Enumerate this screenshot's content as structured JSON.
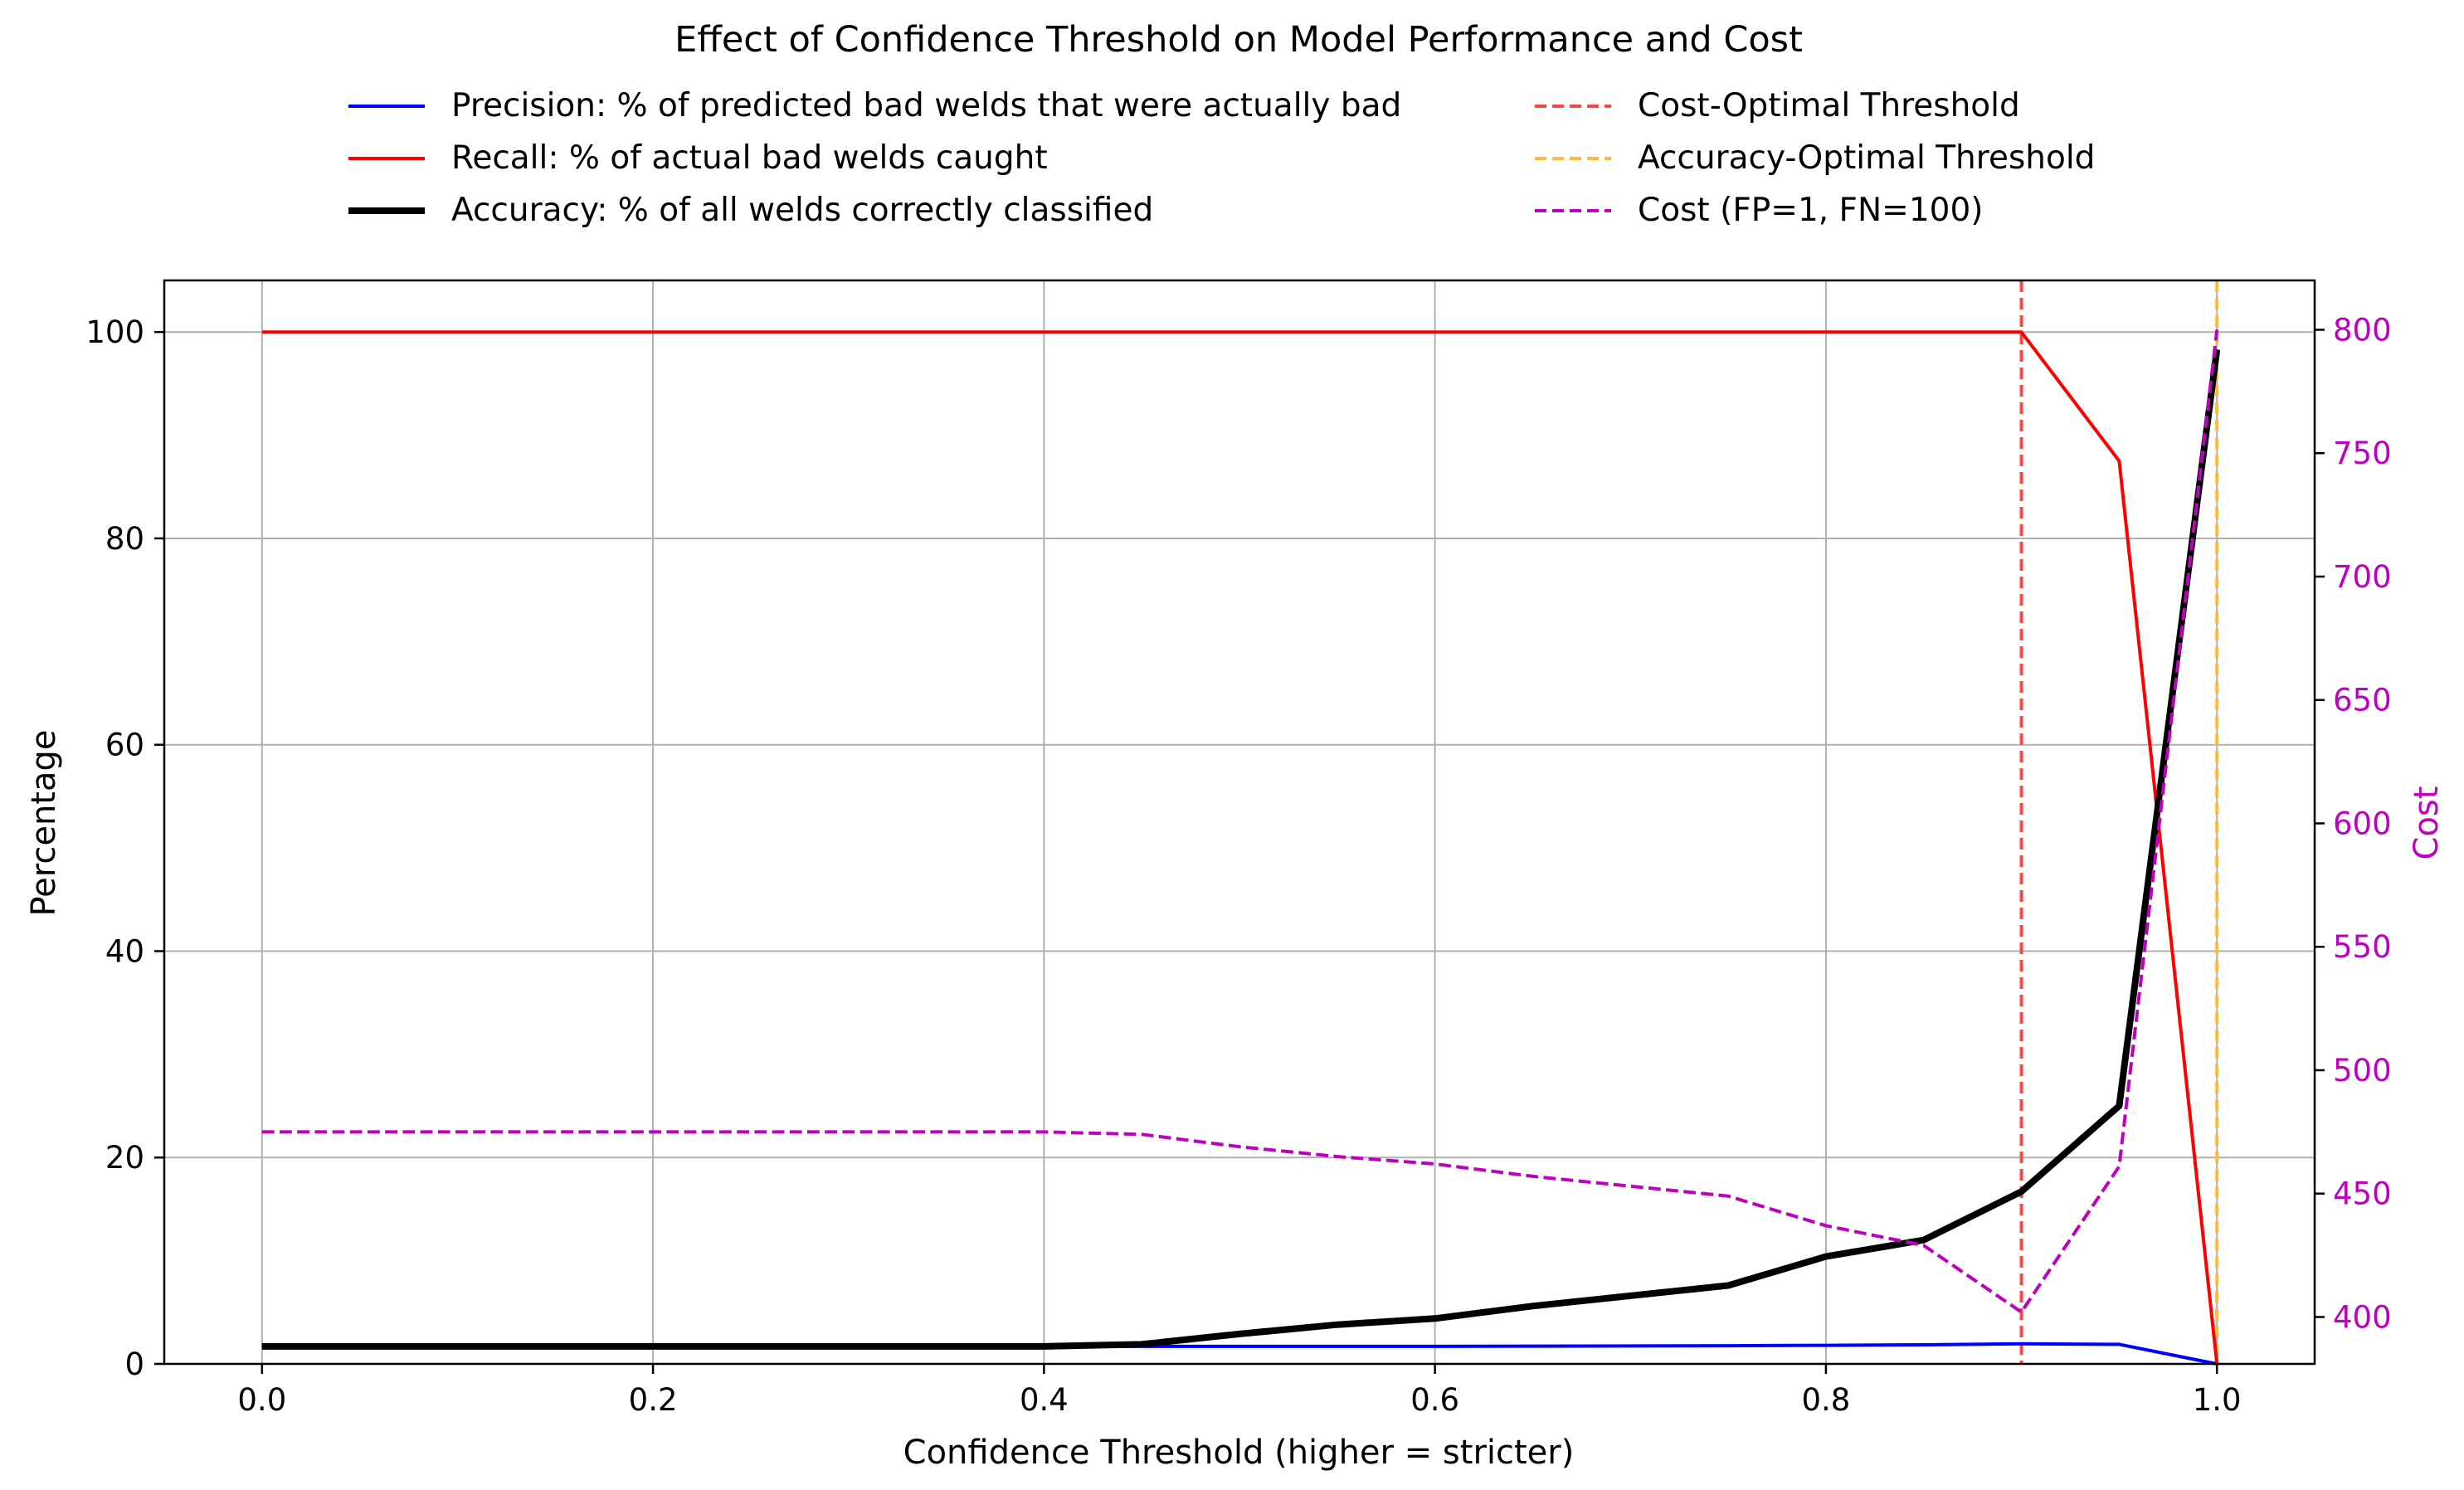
{
  "chart_data": {
    "type": "line",
    "title": "Effect of Confidence Threshold on Model Performance and Cost",
    "xlabel": "Confidence Threshold (higher = stricter)",
    "ylabel": "Percentage",
    "y2label": "Cost",
    "xlim": [
      -0.05,
      1.05
    ],
    "ylim": [
      0,
      105
    ],
    "y2lim": [
      381,
      820
    ],
    "xticks": [
      0.0,
      0.2,
      0.4,
      0.6,
      0.8,
      1.0
    ],
    "xtick_labels": [
      "0.0",
      "0.2",
      "0.4",
      "0.6",
      "0.8",
      "1.0"
    ],
    "yticks": [
      0,
      20,
      40,
      60,
      80,
      100
    ],
    "ytick_labels": [
      "0",
      "20",
      "40",
      "60",
      "80",
      "100"
    ],
    "y2ticks": [
      400,
      450,
      500,
      550,
      600,
      650,
      700,
      750,
      800
    ],
    "y2tick_labels": [
      "400",
      "450",
      "500",
      "550",
      "600",
      "650",
      "700",
      "750",
      "800"
    ],
    "grid": true,
    "legend_position": "top-center",
    "x": [
      0.0,
      0.05,
      0.1,
      0.15,
      0.2,
      0.25,
      0.3,
      0.35,
      0.4,
      0.45,
      0.5,
      0.55,
      0.6,
      0.65,
      0.7,
      0.75,
      0.8,
      0.85,
      0.9,
      0.95,
      1.0
    ],
    "series": [
      {
        "name": "Precision: % of predicted bad welds that were actually bad",
        "axis": "left",
        "color": "#0000ff",
        "style": "solid",
        "width": 2,
        "values": [
          1.7,
          1.7,
          1.7,
          1.7,
          1.7,
          1.7,
          1.7,
          1.7,
          1.7,
          1.7,
          1.7,
          1.7,
          1.7,
          1.72,
          1.74,
          1.76,
          1.8,
          1.85,
          1.95,
          1.9,
          0.0
        ]
      },
      {
        "name": "Recall: % of actual bad welds caught",
        "axis": "left",
        "color": "#ff0000",
        "style": "solid",
        "width": 2,
        "values": [
          100,
          100,
          100,
          100,
          100,
          100,
          100,
          100,
          100,
          100,
          100,
          100,
          100,
          100,
          100,
          100,
          100,
          100,
          100,
          87.5,
          0.0
        ]
      },
      {
        "name": "Accuracy: % of all welds correctly classified",
        "axis": "left",
        "color": "#000000",
        "style": "solid",
        "width": 4,
        "values": [
          1.7,
          1.7,
          1.7,
          1.7,
          1.7,
          1.7,
          1.7,
          1.7,
          1.7,
          1.9,
          2.9,
          3.8,
          4.4,
          5.6,
          6.6,
          7.6,
          10.4,
          12.0,
          16.7,
          25.0,
          98.3
        ]
      },
      {
        "name": "Cost (FP=1, FN=100)",
        "axis": "right",
        "color": "#bf00bf",
        "style": "dashed",
        "width": 2,
        "values": [
          475,
          475,
          475,
          475,
          475,
          475,
          475,
          475,
          475,
          474,
          469,
          465,
          462,
          457,
          453,
          449,
          437,
          429,
          402,
          461,
          800
        ]
      }
    ],
    "vlines": [
      {
        "name": "Cost-Optimal Threshold",
        "x": 0.9,
        "color": "#ff4444",
        "style": "dashed"
      },
      {
        "name": "Accuracy-Optimal Threshold",
        "x": 1.0,
        "color": "#ffbb33",
        "style": "dashed"
      }
    ],
    "legend_order": [
      "Precision: % of predicted bad welds that were actually bad",
      "Recall: % of actual bad welds caught",
      "Accuracy: % of all welds correctly classified",
      "Cost-Optimal Threshold",
      "Accuracy-Optimal Threshold",
      "Cost (FP=1, FN=100)"
    ],
    "colors": {
      "right_axis": "#bf00bf",
      "grid": "#b0b0b0",
      "axes": "#000000"
    }
  }
}
